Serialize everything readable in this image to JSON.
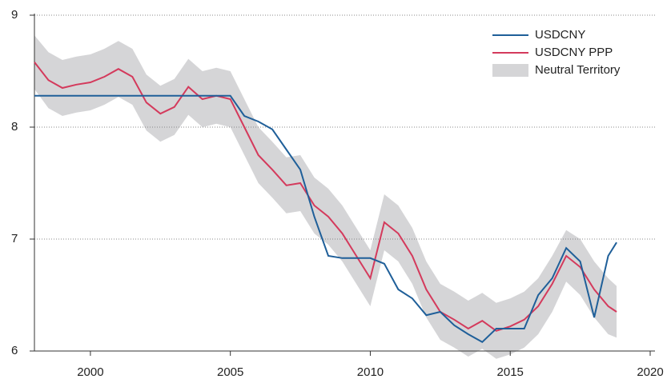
{
  "chart_data": {
    "type": "line",
    "x": [
      1998,
      1998.5,
      1999,
      1999.5,
      2000,
      2000.5,
      2001,
      2001.5,
      2002,
      2002.5,
      2003,
      2003.5,
      2004,
      2004.5,
      2005,
      2005.5,
      2006,
      2006.5,
      2007,
      2007.5,
      2008,
      2008.5,
      2009,
      2009.5,
      2010,
      2010.5,
      2011,
      2011.5,
      2012,
      2012.5,
      2013,
      2013.5,
      2014,
      2014.5,
      2015,
      2015.5,
      2016,
      2016.5,
      2017,
      2017.5,
      2018,
      2018.5,
      2018.8
    ],
    "series": [
      {
        "name": "USDCNY",
        "color": "#1f5f99",
        "values": [
          8.28,
          8.28,
          8.28,
          8.28,
          8.28,
          8.28,
          8.28,
          8.28,
          8.28,
          8.28,
          8.28,
          8.28,
          8.28,
          8.28,
          8.28,
          8.1,
          8.05,
          7.98,
          7.8,
          7.62,
          7.2,
          6.85,
          6.83,
          6.83,
          6.83,
          6.78,
          6.55,
          6.47,
          6.32,
          6.35,
          6.23,
          6.15,
          6.08,
          6.2,
          6.2,
          6.2,
          6.5,
          6.65,
          6.92,
          6.8,
          6.3,
          6.85,
          6.97
        ]
      },
      {
        "name": "USDCNY PPP",
        "color": "#d43a5c",
        "values": [
          8.58,
          8.42,
          8.35,
          8.38,
          8.4,
          8.45,
          8.52,
          8.45,
          8.22,
          8.12,
          8.18,
          8.36,
          8.25,
          8.28,
          8.25,
          8.0,
          7.75,
          7.62,
          7.48,
          7.5,
          7.3,
          7.2,
          7.05,
          6.85,
          6.65,
          7.15,
          7.05,
          6.85,
          6.55,
          6.35,
          6.28,
          6.2,
          6.27,
          6.18,
          6.22,
          6.28,
          6.4,
          6.6,
          6.85,
          6.75,
          6.55,
          6.4,
          6.35
        ]
      }
    ],
    "band": {
      "name": "Neutral Territory",
      "color": "#d5d5d7",
      "upper": [
        8.82,
        8.67,
        8.6,
        8.63,
        8.65,
        8.7,
        8.77,
        8.7,
        8.47,
        8.37,
        8.43,
        8.61,
        8.5,
        8.53,
        8.5,
        8.25,
        8.0,
        7.87,
        7.73,
        7.75,
        7.55,
        7.45,
        7.3,
        7.1,
        6.9,
        7.4,
        7.3,
        7.1,
        6.8,
        6.6,
        6.53,
        6.45,
        6.52,
        6.43,
        6.47,
        6.53,
        6.65,
        6.85,
        7.08,
        7.0,
        6.8,
        6.65,
        6.58
      ],
      "lower": [
        8.34,
        8.17,
        8.1,
        8.13,
        8.15,
        8.2,
        8.27,
        8.2,
        7.97,
        7.87,
        7.93,
        8.11,
        8.0,
        8.03,
        8.0,
        7.75,
        7.5,
        7.37,
        7.23,
        7.25,
        7.05,
        6.95,
        6.8,
        6.6,
        6.4,
        6.9,
        6.8,
        6.6,
        6.3,
        6.1,
        6.03,
        5.95,
        6.02,
        5.93,
        5.97,
        6.03,
        6.15,
        6.35,
        6.62,
        6.5,
        6.3,
        6.15,
        6.12
      ]
    },
    "xlim": [
      1998,
      2020
    ],
    "xticks": [
      2000,
      2005,
      2010,
      2015,
      2020
    ],
    "ylim": [
      6,
      9
    ],
    "yticks": [
      6,
      7,
      8,
      9
    ],
    "grid": true,
    "legend": "top-right"
  }
}
